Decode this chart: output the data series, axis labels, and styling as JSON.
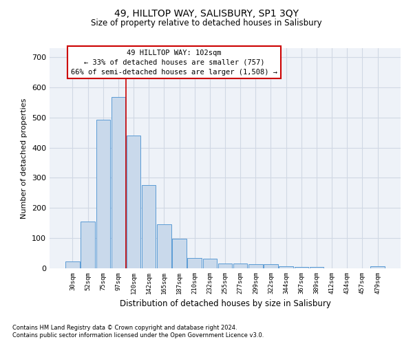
{
  "title": "49, HILLTOP WAY, SALISBURY, SP1 3QY",
  "subtitle": "Size of property relative to detached houses in Salisbury",
  "xlabel": "Distribution of detached houses by size in Salisbury",
  "ylabel": "Number of detached properties",
  "footnote1": "Contains HM Land Registry data © Crown copyright and database right 2024.",
  "footnote2": "Contains public sector information licensed under the Open Government Licence v3.0.",
  "bar_color": "#c9d9eb",
  "bar_edge_color": "#5b9bd5",
  "grid_color": "#d0d8e4",
  "bg_color": "#eef2f8",
  "annotation_line1": "49 HILLTOP WAY: 102sqm",
  "annotation_line2": "← 33% of detached houses are smaller (757)",
  "annotation_line3": "66% of semi-detached houses are larger (1,508) →",
  "annotation_box_color": "#ffffff",
  "annotation_edge_color": "#cc0000",
  "vline_color": "#cc0000",
  "categories": [
    "30sqm",
    "52sqm",
    "75sqm",
    "97sqm",
    "120sqm",
    "142sqm",
    "165sqm",
    "187sqm",
    "210sqm",
    "232sqm",
    "255sqm",
    "277sqm",
    "299sqm",
    "322sqm",
    "344sqm",
    "367sqm",
    "389sqm",
    "412sqm",
    "434sqm",
    "457sqm",
    "479sqm"
  ],
  "values": [
    22,
    155,
    492,
    567,
    440,
    277,
    145,
    97,
    35,
    32,
    15,
    16,
    13,
    13,
    7,
    5,
    5,
    0,
    0,
    0,
    7
  ],
  "ylim": [
    0,
    730
  ],
  "yticks": [
    0,
    100,
    200,
    300,
    400,
    500,
    600,
    700
  ]
}
